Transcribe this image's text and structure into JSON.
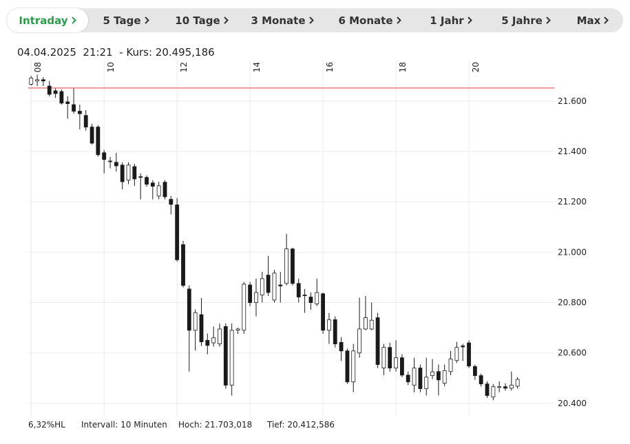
{
  "tabs": [
    "Intraday",
    "5 Tage",
    "10 Tage",
    "3 Monate",
    "6 Monate",
    "1 Jahr",
    "5 Jahre",
    "Max"
  ],
  "active_tab": 0,
  "header": {
    "date_time": "04.04.2025  21:21",
    "price": "- Kurs: 20.495,186"
  },
  "chart_data": {
    "type": "candlestick",
    "x": [
      8,
      8.167,
      8.333,
      8.5,
      8.667,
      8.833,
      9,
      9.167,
      9.333,
      9.5,
      9.667,
      9.833,
      10,
      10.167,
      10.333,
      10.5,
      10.667,
      10.833,
      11,
      11.167,
      11.333,
      11.5,
      11.667,
      11.833,
      12,
      12.167,
      12.333,
      12.5,
      12.667,
      12.833,
      13,
      13.167,
      13.333,
      13.5,
      13.667,
      13.833,
      14,
      14.167,
      14.333,
      14.5,
      14.667,
      14.833,
      15,
      15.167,
      15.333,
      15.5,
      15.667,
      15.833,
      16,
      16.167,
      16.333,
      16.5,
      16.667,
      16.833,
      17,
      17.167,
      17.333,
      17.5,
      17.667,
      17.833,
      18,
      18.167,
      18.333,
      18.5,
      18.667,
      18.833,
      19,
      19.167,
      19.333,
      19.5,
      19.667,
      19.833,
      20,
      20.167,
      20.333,
      20.5,
      20.667,
      20.833,
      21,
      21.167,
      21.333
    ],
    "open": [
      21667,
      21680,
      21685,
      21660,
      21641,
      21638,
      21597,
      21586,
      21560,
      21543,
      21497,
      21497,
      21395,
      21362,
      21357,
      21346,
      21286,
      21340,
      21300,
      21297,
      21275,
      21223,
      21278,
      21210,
      21188,
      21030,
      20854,
      20690,
      20752,
      20650,
      20640,
      20636,
      20705,
      20472,
      20690,
      20690,
      20870,
      20800,
      20830,
      20909,
      20810,
      20870,
      20876,
      21013,
      20876,
      20830,
      20822,
      20795,
      20835,
      20690,
      20732,
      20642,
      20608,
      20485,
      20600,
      20695,
      20695,
      20740,
      20540,
      20622,
      20540,
      20581,
      20512,
      20472,
      20540,
      20458,
      20510,
      20526,
      20480,
      20526,
      20570,
      20628,
      20640,
      20546,
      20510,
      20477,
      20425,
      20463,
      20466,
      20460,
      20468
    ],
    "high": [
      21700,
      21705,
      21695,
      21680,
      21650,
      21646,
      21619,
      21650,
      21586,
      21564,
      21510,
      21504,
      21406,
      21378,
      21395,
      21357,
      21357,
      21351,
      21313,
      21305,
      21286,
      21280,
      21286,
      21223,
      21215,
      21045,
      20868,
      20772,
      20818,
      20677,
      20705,
      20717,
      20717,
      20717,
      20700,
      20882,
      20882,
      20895,
      20922,
      20985,
      20930,
      20922,
      21073,
      21018,
      20895,
      20854,
      20840,
      20895,
      20840,
      20759,
      20745,
      20663,
      20617,
      20636,
      20820,
      20826,
      20800,
      20759,
      20636,
      20640,
      20650,
      20595,
      20526,
      20581,
      20554,
      20581,
      20576,
      20554,
      20554,
      20608,
      20644,
      20636,
      20650,
      20554,
      20518,
      20487,
      20477,
      20487,
      20480,
      20526,
      20504
    ],
    "low": [
      21662,
      21660,
      21660,
      21619,
      21613,
      21586,
      21530,
      21550,
      21488,
      21483,
      21428,
      21380,
      21313,
      21333,
      21320,
      21250,
      21270,
      21264,
      21210,
      21260,
      21210,
      21210,
      21210,
      21150,
      20963,
      20860,
      20526,
      20610,
      20628,
      20595,
      20625,
      20625,
      20458,
      20431,
      20676,
      20676,
      20786,
      20745,
      20800,
      20826,
      20800,
      20800,
      20868,
      20868,
      20800,
      20759,
      20772,
      20786,
      20676,
      20636,
      20622,
      20568,
      20477,
      20444,
      20581,
      20690,
      20690,
      20540,
      20512,
      20526,
      20526,
      20504,
      20472,
      20444,
      20444,
      20431,
      20496,
      20431,
      20468,
      20512,
      20560,
      20568,
      20540,
      20493,
      20466,
      20422,
      20413,
      20444,
      20450,
      20450,
      20458
    ],
    "close": [
      21692,
      21685,
      21680,
      21627,
      21630,
      21592,
      21590,
      21560,
      21550,
      21497,
      21433,
      21387,
      21368,
      21360,
      21343,
      21280,
      21346,
      21291,
      21297,
      21270,
      21262,
      21264,
      21220,
      21190,
      20970,
      20868,
      20690,
      20760,
      20644,
      20630,
      20660,
      20695,
      20472,
      20690,
      20695,
      20873,
      20800,
      20840,
      20895,
      20840,
      20917,
      20866,
      21013,
      20876,
      20822,
      20828,
      20800,
      20840,
      20690,
      20732,
      20636,
      20608,
      20485,
      20608,
      20695,
      20740,
      20730,
      20554,
      20622,
      20540,
      20581,
      20512,
      20485,
      20540,
      20458,
      20504,
      20525,
      20493,
      20530,
      20576,
      20622,
      20624,
      20548,
      20510,
      20477,
      20431,
      20466,
      20466,
      20460,
      20472,
      20495
    ],
    "xlim": [
      7.92,
      22.34
    ],
    "xticks": [
      {
        "value": 8,
        "label": "08"
      },
      10,
      12,
      14,
      16,
      18,
      20
    ],
    "ylim": [
      20345,
      21761
    ],
    "yticks": [
      {
        "value": 20400,
        "label": "20.400"
      },
      {
        "value": 20600,
        "label": "20.600"
      },
      {
        "value": 20800,
        "label": "20.800"
      },
      {
        "value": 21000,
        "label": "21.000"
      },
      {
        "value": 21200,
        "label": "21.200"
      },
      {
        "value": 21400,
        "label": "21.400"
      },
      {
        "value": 21600,
        "label": "21.600"
      }
    ],
    "grid": true,
    "up_color": "#ffffff",
    "down_color": "#1a1a1a",
    "reference_line": {
      "value": 21652,
      "color": "#e0393e"
    }
  },
  "footer": {
    "range": "6,32%HL",
    "interval": "Intervall: 10 Minuten",
    "high": "Hoch: 21.703,018",
    "low": "Tief: 20.412,586"
  }
}
